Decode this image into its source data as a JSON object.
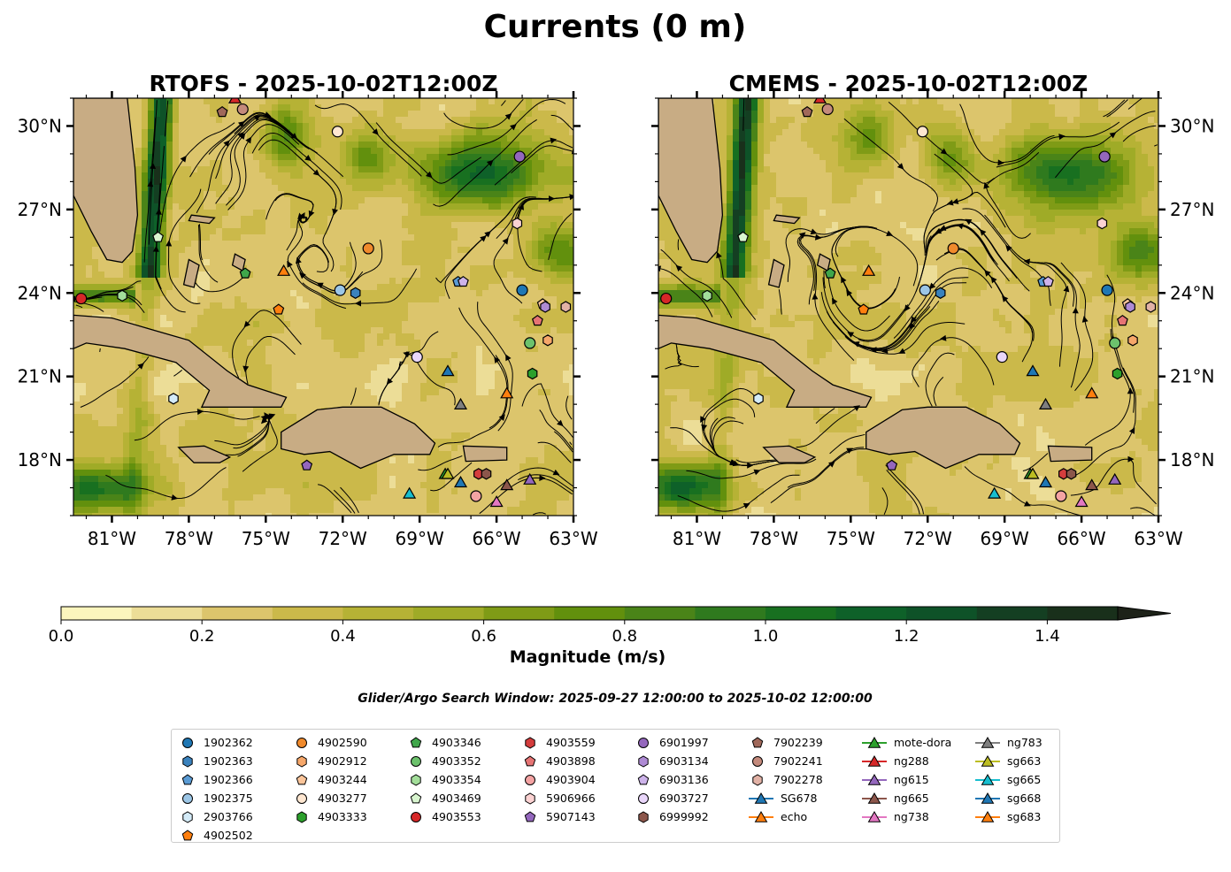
{
  "figure_title": "Currents (0 m)",
  "search_window": "Glider/Argo Search Window: 2025-09-27 12:00:00 to 2025-10-02 12:00:00",
  "colors": {
    "land": "#c8ac84",
    "colormap": [
      "#fbf5bd",
      "#ecdd97",
      "#dcc56c",
      "#cbb94a",
      "#b6b235",
      "#9fab27",
      "#7f9b16",
      "#62900d",
      "#4a8418",
      "#2f7a1e",
      "#187020",
      "#0e6129",
      "#0e5228",
      "#143f22",
      "#19301b",
      "#1d2218"
    ]
  },
  "panels": [
    {
      "title": "RTOFS - 2025-10-02T12:00Z",
      "lon_ticks": [
        "81°W",
        "78°W",
        "75°W",
        "72°W",
        "69°W",
        "66°W",
        "63°W"
      ],
      "lat_ticks": [
        "30°N",
        "27°N",
        "24°N",
        "21°N",
        "18°N"
      ],
      "lat_label_side": "left",
      "seed": 7
    },
    {
      "title": "CMEMS - 2025-10-02T12:00Z",
      "lon_ticks": [
        "81°W",
        "78°W",
        "75°W",
        "72°W",
        "69°W",
        "66°W",
        "63°W"
      ],
      "lat_ticks": [
        "30°N",
        "27°N",
        "24°N",
        "21°N",
        "18°N"
      ],
      "lat_label_side": "right",
      "seed": 19
    }
  ],
  "colorbar": {
    "label": "Magnitude (m/s)",
    "ticks": [
      "0.0",
      "0.2",
      "0.4",
      "0.6",
      "0.8",
      "1.0",
      "1.2",
      "1.4"
    ]
  },
  "chart_data": {
    "type": "contourf + streamlines + observation markers",
    "title": "Currents (0 m)",
    "lon_range": [
      -82.5,
      -63
    ],
    "lat_range": [
      16,
      31
    ],
    "colorbar_range": [
      0,
      1.5
    ],
    "colorbar_extend": "max",
    "observations": [
      {
        "id": "1902362",
        "lon": -65.0,
        "lat": 24.1
      },
      {
        "id": "1902363",
        "lon": -71.5,
        "lat": 24.0
      },
      {
        "id": "1902366",
        "lon": -67.5,
        "lat": 24.4
      },
      {
        "id": "1902375",
        "lon": -72.1,
        "lat": 24.1
      },
      {
        "id": "2903766",
        "lon": -78.6,
        "lat": 20.2
      },
      {
        "id": "4902502",
        "lon": -74.5,
        "lat": 23.4
      },
      {
        "id": "4902590",
        "lon": -71.0,
        "lat": 25.6
      },
      {
        "id": "4902912",
        "lon": -64.0,
        "lat": 22.3
      },
      {
        "id": "4903244",
        "lon": -64.2,
        "lat": 23.6
      },
      {
        "id": "4903277",
        "lon": -72.2,
        "lat": 29.8
      },
      {
        "id": "4903333",
        "lon": -64.6,
        "lat": 21.1
      },
      {
        "id": "4903346",
        "lon": -75.8,
        "lat": 24.7
      },
      {
        "id": "4903352",
        "lon": -64.7,
        "lat": 22.2
      },
      {
        "id": "4903354",
        "lon": -80.6,
        "lat": 23.9
      },
      {
        "id": "4903469",
        "lon": -79.2,
        "lat": 26.0
      },
      {
        "id": "4903553",
        "lon": -82.2,
        "lat": 23.8
      },
      {
        "id": "4903559",
        "lon": -66.7,
        "lat": 17.5
      },
      {
        "id": "4903898",
        "lon": -64.4,
        "lat": 23.0
      },
      {
        "id": "4903904",
        "lon": -66.8,
        "lat": 16.7
      },
      {
        "id": "5906966",
        "lon": -65.2,
        "lat": 26.5
      },
      {
        "id": "5907143",
        "lon": -73.4,
        "lat": 17.8
      },
      {
        "id": "6901997",
        "lon": -65.1,
        "lat": 28.9
      },
      {
        "id": "6903134",
        "lon": -64.1,
        "lat": 23.5
      },
      {
        "id": "6903136",
        "lon": -67.3,
        "lat": 24.4
      },
      {
        "id": "6903727",
        "lon": -69.1,
        "lat": 21.7
      },
      {
        "id": "6999992",
        "lon": -66.4,
        "lat": 17.5
      },
      {
        "id": "7902239",
        "lon": -76.7,
        "lat": 30.5
      },
      {
        "id": "7902241",
        "lon": -75.9,
        "lat": 30.6
      },
      {
        "id": "7902278",
        "lon": -63.3,
        "lat": 23.5
      },
      {
        "id": "SG678",
        "lon": -67.9,
        "lat": 21.2
      },
      {
        "id": "echo",
        "lon": -74.3,
        "lat": 24.8
      },
      {
        "id": "mote-dora",
        "lon": -68.0,
        "lat": 17.5
      },
      {
        "id": "ng288",
        "lon": -76.2,
        "lat": 31.0
      },
      {
        "id": "ng615",
        "lon": -64.7,
        "lat": 17.3
      },
      {
        "id": "ng665",
        "lon": -65.6,
        "lat": 17.1
      },
      {
        "id": "ng738",
        "lon": -66.0,
        "lat": 16.5
      },
      {
        "id": "ng783",
        "lon": -67.4,
        "lat": 20.0
      },
      {
        "id": "sg663",
        "lon": -67.9,
        "lat": 17.5
      },
      {
        "id": "sg665",
        "lon": -69.4,
        "lat": 16.8
      },
      {
        "id": "sg668",
        "lon": -67.4,
        "lat": 17.2
      },
      {
        "id": "sg683",
        "lon": -65.6,
        "lat": 20.4
      }
    ]
  },
  "legend": {
    "columns": [
      [
        {
          "label": "1902362",
          "marker": "circle",
          "color": "#1f77b4"
        },
        {
          "label": "1902363",
          "marker": "hexagon",
          "color": "#3a82bd"
        },
        {
          "label": "1902366",
          "marker": "pentagon",
          "color": "#5a9bd4"
        },
        {
          "label": "1902375",
          "marker": "circle",
          "color": "#9cc6e6"
        },
        {
          "label": "2903766",
          "marker": "hexagon",
          "color": "#d4ebf8"
        },
        {
          "label": "4902502",
          "marker": "pentagon",
          "color": "#ff7f0e"
        }
      ],
      [
        {
          "label": "4902590",
          "marker": "circle",
          "color": "#f08a2c"
        },
        {
          "label": "4902912",
          "marker": "hexagon",
          "color": "#f6a76a"
        },
        {
          "label": "4903244",
          "marker": "pentagon",
          "color": "#fbc59a"
        },
        {
          "label": "4903277",
          "marker": "circle",
          "color": "#ffe7d1"
        },
        {
          "label": "4903333",
          "marker": "hexagon",
          "color": "#2ca02c"
        }
      ],
      [
        {
          "label": "4903346",
          "marker": "pentagon",
          "color": "#3fa64a"
        },
        {
          "label": "4903352",
          "marker": "circle",
          "color": "#6cc26c"
        },
        {
          "label": "4903354",
          "marker": "hexagon",
          "color": "#a3de9a"
        },
        {
          "label": "4903469",
          "marker": "pentagon",
          "color": "#d8f5cf"
        },
        {
          "label": "4903553",
          "marker": "circle",
          "color": "#d62728"
        }
      ],
      [
        {
          "label": "4903559",
          "marker": "hexagon",
          "color": "#d43d3d"
        },
        {
          "label": "4903898",
          "marker": "pentagon",
          "color": "#e67474"
        },
        {
          "label": "4903904",
          "marker": "circle",
          "color": "#f4a3a3"
        },
        {
          "label": "5906966",
          "marker": "hexagon",
          "color": "#fbd2d2"
        },
        {
          "label": "5907143",
          "marker": "pentagon",
          "color": "#9467bd"
        }
      ],
      [
        {
          "label": "6901997",
          "marker": "circle",
          "color": "#9467bd"
        },
        {
          "label": "6903134",
          "marker": "hexagon",
          "color": "#ae8ad4"
        },
        {
          "label": "6903136",
          "marker": "pentagon",
          "color": "#cdb3ea"
        },
        {
          "label": "6903727",
          "marker": "circle",
          "color": "#e9d6fa"
        },
        {
          "label": "6999992",
          "marker": "hexagon",
          "color": "#8c564b"
        }
      ],
      [
        {
          "label": "7902239",
          "marker": "pentagon",
          "color": "#a0685a"
        },
        {
          "label": "7902241",
          "marker": "circle",
          "color": "#c48a7c"
        },
        {
          "label": "7902278",
          "marker": "hexagon",
          "color": "#e2b2a6"
        },
        {
          "label": "SG678",
          "marker": "triangle",
          "color": "#1f77b4",
          "line": true
        },
        {
          "label": "echo",
          "marker": "triangle",
          "color": "#ff7f0e",
          "line": true
        }
      ],
      [
        {
          "label": "mote-dora",
          "marker": "triangle",
          "color": "#2ca02c",
          "line": true
        },
        {
          "label": "ng288",
          "marker": "triangle",
          "color": "#d62728",
          "line": true
        },
        {
          "label": "ng615",
          "marker": "triangle",
          "color": "#9467bd",
          "line": true
        },
        {
          "label": "ng665",
          "marker": "triangle",
          "color": "#8c564b",
          "line": true
        },
        {
          "label": "ng738",
          "marker": "triangle",
          "color": "#e377c2",
          "line": true
        }
      ],
      [
        {
          "label": "ng783",
          "marker": "triangle",
          "color": "#7f7f7f",
          "line": true
        },
        {
          "label": "sg663",
          "marker": "triangle",
          "color": "#bcbd22",
          "line": true
        },
        {
          "label": "sg665",
          "marker": "triangle",
          "color": "#17becf",
          "line": true
        },
        {
          "label": "sg668",
          "marker": "triangle",
          "color": "#1f77b4",
          "line": true
        },
        {
          "label": "sg683",
          "marker": "triangle",
          "color": "#ff7f0e",
          "line": true
        }
      ]
    ]
  }
}
